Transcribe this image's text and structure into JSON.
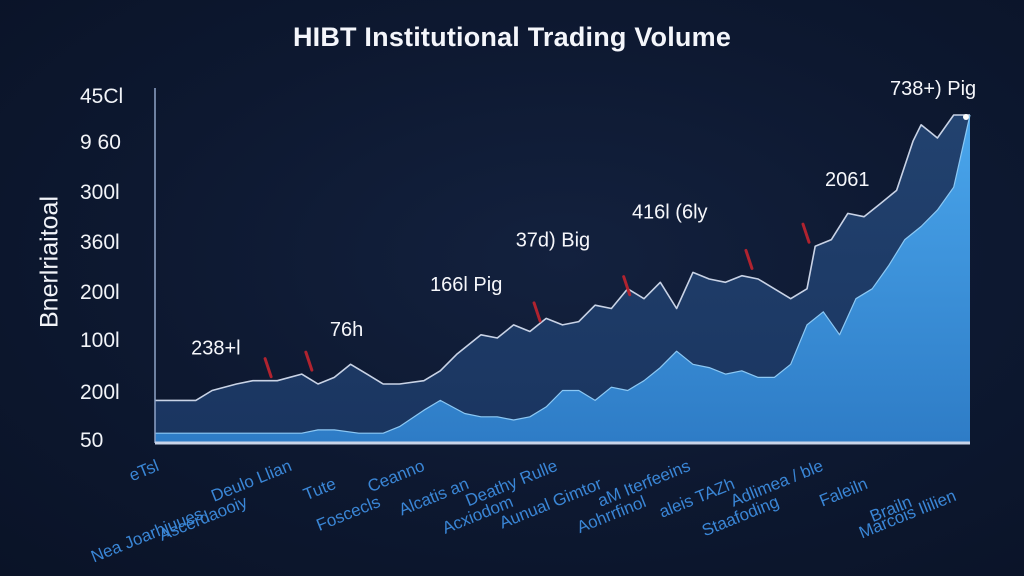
{
  "chart_data": {
    "type": "area",
    "title": "HIBT Institutional Trading Volume",
    "ylabel": "Bnerlriaitoal",
    "xlabel": "",
    "yticks": [
      "45Cl",
      "9 60",
      "300l",
      "360l",
      "200l",
      "100l",
      "200l",
      "50"
    ],
    "xticks": [
      "eTsl",
      "Nea Joarhjuues",
      "Ascerdaooiy",
      "Deulo Llian",
      "Tute",
      "Foscecls",
      "Ceanno",
      "Alcatis an",
      "Acxiodom",
      "Deathy Rulle",
      "Aunual Gimtor",
      "Aohrrfinol",
      "aM Iterfeeins",
      "aleis TAZh",
      "Staafoding",
      "Adlimea / ble",
      "Faleiln",
      "Brailn",
      "Marcois Ililien"
    ],
    "x_range": [
      0,
      100
    ],
    "y_range": [
      0,
      100
    ],
    "grid": false,
    "series": [
      {
        "role": "back area",
        "color": "#1d3a66",
        "x": [
          0,
          3,
          5,
          7,
          10,
          12,
          15,
          18,
          20,
          22,
          24,
          26,
          28,
          30,
          33,
          35,
          37,
          40,
          42,
          44,
          46,
          48,
          50,
          52,
          54,
          56,
          58,
          60,
          62,
          64,
          66,
          68,
          70,
          72,
          74,
          76,
          78,
          80,
          81,
          83,
          85,
          87,
          89,
          91,
          93,
          94,
          95,
          96,
          98,
          100
        ],
        "y": [
          13,
          13,
          13,
          16,
          18,
          19,
          19,
          21,
          18,
          20,
          24,
          21,
          18,
          18,
          19,
          22,
          27,
          33,
          32,
          36,
          34,
          38,
          36,
          37,
          42,
          41,
          47,
          44,
          49,
          41,
          52,
          50,
          49,
          51,
          50,
          47,
          44,
          47,
          60,
          62,
          70,
          69,
          73,
          77,
          92,
          97,
          95,
          93,
          100,
          100
        ]
      },
      {
        "role": "front area",
        "color": "#3e96dc",
        "x": [
          0,
          5,
          10,
          15,
          18,
          20,
          22,
          25,
          28,
          30,
          33,
          35,
          38,
          40,
          42,
          44,
          46,
          48,
          50,
          52,
          54,
          56,
          58,
          60,
          62,
          64,
          66,
          68,
          70,
          72,
          74,
          76,
          78,
          80,
          82,
          84,
          86,
          88,
          90,
          92,
          94,
          96,
          98,
          100
        ],
        "y": [
          3,
          3,
          3,
          3,
          3,
          4,
          4,
          3,
          3,
          5,
          10,
          13,
          9,
          8,
          8,
          7,
          8,
          11,
          16,
          16,
          13,
          17,
          16,
          19,
          23,
          28,
          24,
          23,
          21,
          22,
          20,
          20,
          24,
          36,
          40,
          33,
          44,
          47,
          54,
          62,
          66,
          71,
          78,
          100
        ]
      }
    ],
    "annotations": [
      {
        "label": "738+) Pig",
        "x": 100,
        "y": 100
      },
      {
        "label": "2061",
        "x": 80,
        "y": 60
      },
      {
        "label": "416l (6ly",
        "x": 73,
        "y": 52
      },
      {
        "label": "37d) Big",
        "x": 58,
        "y": 44
      },
      {
        "label": "166l Pig",
        "x": 47,
        "y": 36
      },
      {
        "label": "76h",
        "x": 19,
        "y": 21
      },
      {
        "label": "238+l",
        "x": 14,
        "y": 19
      }
    ]
  },
  "colors": {
    "background": "#0d1830",
    "back_area": "#1d3a66",
    "front_area": "#3e96dc",
    "axis": "#8fa4c7",
    "marker": "#b0232f",
    "label_text": "#3a86d6"
  }
}
